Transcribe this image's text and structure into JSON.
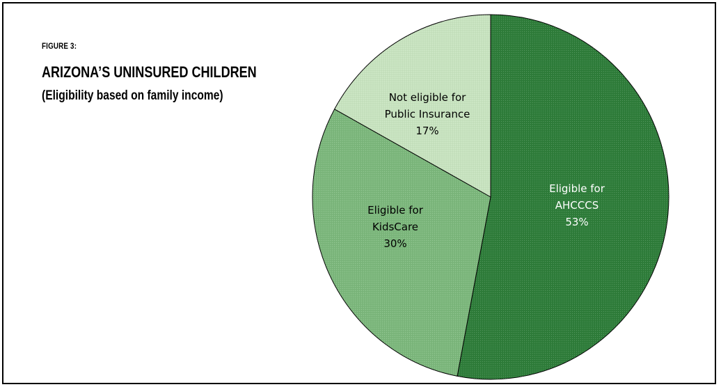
{
  "figure": {
    "label": "FIGURE 3:",
    "title": "ARIZONA’S UNINSURED CHILDREN",
    "subtitle": "(Eligibility based on family income)"
  },
  "colors": {
    "ahcccs": "#2e7d3a",
    "kidscare": "#7cb87c",
    "not_eligible": "#c8e4c0",
    "border": "#000000"
  },
  "chart_data": {
    "type": "pie",
    "title": "ARIZONA’S UNINSURED CHILDREN",
    "subtitle": "(Eligibility based on family income)",
    "slices": [
      {
        "key": "ahcccs",
        "value": 53,
        "label_lines": [
          "Eligible for",
          "AHCCCS",
          "53%"
        ],
        "label_color": "#ffffff"
      },
      {
        "key": "kidscare",
        "value": 30,
        "label_lines": [
          "Eligible for",
          "KidsCare",
          "30%"
        ],
        "label_color": "#000000"
      },
      {
        "key": "not_eligible",
        "value": 17,
        "label_lines": [
          "Not eligible for",
          "Public Insurance",
          "17%"
        ],
        "label_color": "#000000"
      }
    ]
  }
}
